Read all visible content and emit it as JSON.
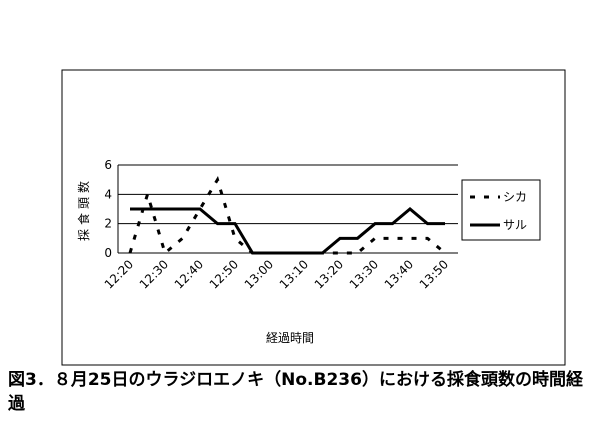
{
  "chart_data": {
    "type": "line",
    "y_label": "採食頭数",
    "x_label": "経過時間",
    "categories": [
      "12:20",
      null,
      "12:30",
      null,
      "12:40",
      null,
      "12:50",
      null,
      "13:00",
      null,
      "13:10",
      null,
      "13:20",
      null,
      "13:30",
      null,
      "13:40",
      null,
      "13:50"
    ],
    "series": [
      {
        "name": "シカ",
        "color": "#000000",
        "dash": true,
        "values": [
          0,
          4,
          0,
          1,
          3,
          5,
          1,
          0,
          0,
          0,
          0,
          0,
          0,
          0,
          1,
          1,
          1,
          1,
          0
        ]
      },
      {
        "name": "サル",
        "color": "#000000",
        "dash": false,
        "values": [
          3,
          3,
          3,
          3,
          3,
          2,
          2,
          0,
          0,
          0,
          0,
          0,
          1,
          1,
          2,
          2,
          3,
          2,
          2
        ]
      }
    ],
    "ylim": [
      0,
      6
    ],
    "yticks": [
      0,
      2,
      4,
      6
    ],
    "grid": true,
    "legend": "right"
  },
  "caption": "図3．８月25日のウラジロエノキ（No.B236）における採食頭数の時間経過"
}
